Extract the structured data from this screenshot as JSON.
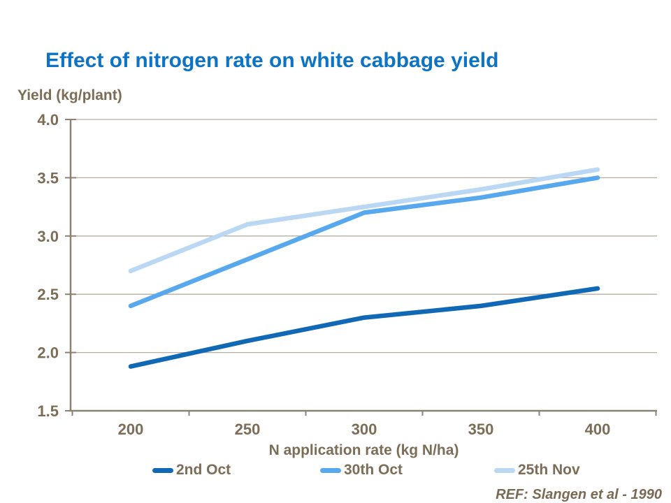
{
  "chart_data": {
    "type": "line",
    "title": "Effect of nitrogen rate on white cabbage yield",
    "xlabel": "N application rate (kg N/ha)",
    "ylabel": "Yield (kg/plant)",
    "categories": [
      200,
      250,
      300,
      350,
      400
    ],
    "series": [
      {
        "name": "2nd Oct",
        "color": "#1169b5",
        "values": [
          1.88,
          2.1,
          2.3,
          2.4,
          2.55
        ]
      },
      {
        "name": "30th Oct",
        "color": "#58a8ee",
        "values": [
          2.4,
          2.8,
          3.2,
          3.33,
          3.5
        ]
      },
      {
        "name": "25th Nov",
        "color": "#bad8f4",
        "values": [
          2.7,
          3.1,
          3.25,
          3.4,
          3.57
        ]
      }
    ],
    "ylim": [
      1.5,
      4.0
    ],
    "ytick_step": 0.5,
    "ytick_labels": [
      "1.5",
      "2.0",
      "2.5",
      "3.0",
      "3.5",
      "4.0"
    ],
    "grid": true,
    "legend_position": "bottom"
  },
  "footer": {
    "ref": "REF: Slangen et al - 1990"
  },
  "colors": {
    "title_blue": "#0d73c5",
    "label_brown": "#7d6d57",
    "axis": "#8c8173",
    "gridline": "#b6aea1",
    "series_dark_blue": "#1169b5",
    "series_medium_blue": "#58a8ee",
    "series_light_blue": "#bad8f4"
  }
}
